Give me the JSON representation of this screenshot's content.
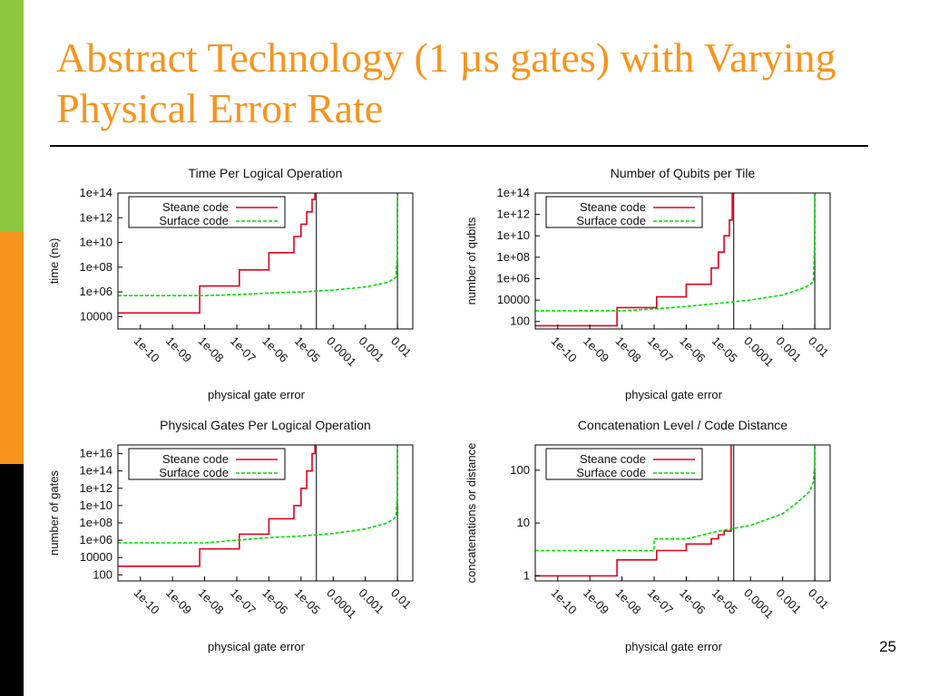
{
  "slide": {
    "title": "Abstract Technology (1 µs gates) with Varying Physical Error Rate",
    "page_number": "25",
    "colors": {
      "title": "#f7941d",
      "bar_green": "#8dc63f",
      "bar_orange": "#f7941d",
      "bar_black": "#000000"
    }
  },
  "chart_data": [
    {
      "type": "line",
      "title": "Time Per Logical Operation",
      "xlabel": "physical gate error",
      "ylabel": "time (ns)",
      "x_scale": "log",
      "y_scale": "log",
      "xlim": [
        2e-11,
        0.03
      ],
      "ylim": [
        1000,
        100000000000000.0
      ],
      "x_ticks": [
        "1e-10",
        "1e-09",
        "1e-08",
        "1e-07",
        "1e-06",
        "1e-05",
        "0.0001",
        "0.001",
        "0.01"
      ],
      "y_ticks": [
        "1e+14",
        "1e+12",
        "1e+10",
        "1e+08",
        "1e+06",
        "10000"
      ],
      "threshold_lines": [
        3e-05,
        0.01
      ],
      "legend": {
        "position": "top-left",
        "entries": [
          "Steane code",
          "Surface code"
        ]
      },
      "series": [
        {
          "name": "Steane code",
          "color": "#e3001b",
          "style": "solid",
          "points": [
            [
              2e-11,
              20000.0
            ],
            [
              7e-09,
              20000.0
            ],
            [
              7e-09,
              3000000.0
            ],
            [
              1.2e-07,
              3000000.0
            ],
            [
              1.2e-07,
              60000000.0
            ],
            [
              1e-06,
              60000000.0
            ],
            [
              1e-06,
              1500000000.0
            ],
            [
              6e-06,
              1500000000.0
            ],
            [
              6e-06,
              30000000000.0
            ],
            [
              1e-05,
              30000000000.0
            ],
            [
              1e-05,
              300000000000.0
            ],
            [
              1.5e-05,
              300000000000.0
            ],
            [
              1.5e-05,
              3000000000000.0
            ],
            [
              2.2e-05,
              3000000000000.0
            ],
            [
              2.2e-05,
              30000000000000.0
            ],
            [
              2.7e-05,
              30000000000000.0
            ],
            [
              2.7e-05,
              100000000000000.0
            ]
          ]
        },
        {
          "name": "Surface code",
          "color": "#00dd00",
          "style": "dashed",
          "points": [
            [
              2e-11,
              500000.0
            ],
            [
              1e-08,
              500000.0
            ],
            [
              1e-07,
              600000.0
            ],
            [
              1e-06,
              800000.0
            ],
            [
              1e-05,
              1000000.0
            ],
            [
              0.0001,
              1400000.0
            ],
            [
              0.001,
              2500000.0
            ],
            [
              0.005,
              6000000.0
            ],
            [
              0.009,
              15000000.0
            ],
            [
              0.0098,
              1000000000.0
            ],
            [
              0.01,
              100000000000000.0
            ]
          ]
        }
      ]
    },
    {
      "type": "line",
      "title": "Number of Qubits per Tile",
      "xlabel": "physical gate error",
      "ylabel": "number of qubits",
      "x_scale": "log",
      "y_scale": "log",
      "xlim": [
        2e-11,
        0.03
      ],
      "ylim": [
        20,
        100000000000000.0
      ],
      "x_ticks": [
        "1e-10",
        "1e-09",
        "1e-08",
        "1e-07",
        "1e-06",
        "1e-05",
        "0.0001",
        "0.001",
        "0.01"
      ],
      "y_ticks": [
        "1e+14",
        "1e+12",
        "1e+10",
        "1e+08",
        "1e+06",
        "10000",
        "100"
      ],
      "threshold_lines": [
        3e-05,
        0.01
      ],
      "legend": {
        "position": "top-left",
        "entries": [
          "Steane code",
          "Surface code"
        ]
      },
      "series": [
        {
          "name": "Steane code",
          "color": "#e3001b",
          "style": "solid",
          "points": [
            [
              2e-11,
              40
            ],
            [
              7e-09,
              40
            ],
            [
              7e-09,
              2000
            ],
            [
              1.2e-07,
              2000
            ],
            [
              1.2e-07,
              20000.0
            ],
            [
              1e-06,
              20000.0
            ],
            [
              1e-06,
              300000.0
            ],
            [
              6e-06,
              300000.0
            ],
            [
              6e-06,
              10000000.0
            ],
            [
              1e-05,
              10000000.0
            ],
            [
              1e-05,
              300000000.0
            ],
            [
              1.5e-05,
              300000000.0
            ],
            [
              1.5e-05,
              10000000000.0
            ],
            [
              2.2e-05,
              10000000000.0
            ],
            [
              2.2e-05,
              300000000000.0
            ],
            [
              2.7e-05,
              300000000000.0
            ],
            [
              2.7e-05,
              100000000000000.0
            ]
          ]
        },
        {
          "name": "Surface code",
          "color": "#00dd00",
          "style": "dashed",
          "points": [
            [
              2e-11,
              1000
            ],
            [
              1e-08,
              1000
            ],
            [
              1e-07,
              1500
            ],
            [
              1e-06,
              2500
            ],
            [
              1e-05,
              5000
            ],
            [
              0.0001,
              10000.0
            ],
            [
              0.001,
              30000.0
            ],
            [
              0.005,
              150000.0
            ],
            [
              0.009,
              500000.0
            ],
            [
              0.0098,
              1000000000.0
            ],
            [
              0.01,
              100000000000000.0
            ]
          ]
        }
      ]
    },
    {
      "type": "line",
      "title": "Physical Gates Per Logical Operation",
      "xlabel": "physical gate error",
      "ylabel": "number of gates",
      "x_scale": "log",
      "y_scale": "log",
      "xlim": [
        2e-11,
        0.03
      ],
      "ylim": [
        20,
        1e+17
      ],
      "x_ticks": [
        "1e-10",
        "1e-09",
        "1e-08",
        "1e-07",
        "1e-06",
        "1e-05",
        "0.0001",
        "0.001",
        "0.01"
      ],
      "y_ticks": [
        "1e+16",
        "1e+14",
        "1e+12",
        "1e+10",
        "1e+08",
        "1e+06",
        "10000",
        "100"
      ],
      "threshold_lines": [
        3e-05,
        0.01
      ],
      "legend": {
        "position": "top-left",
        "entries": [
          "Steane code",
          "Surface code"
        ]
      },
      "series": [
        {
          "name": "Steane code",
          "color": "#e3001b",
          "style": "solid",
          "points": [
            [
              2e-11,
              1000
            ],
            [
              7e-09,
              1000
            ],
            [
              7e-09,
              100000.0
            ],
            [
              1.2e-07,
              100000.0
            ],
            [
              1.2e-07,
              5000000.0
            ],
            [
              1e-06,
              5000000.0
            ],
            [
              1e-06,
              300000000.0
            ],
            [
              6e-06,
              300000000.0
            ],
            [
              6e-06,
              10000000000.0
            ],
            [
              1e-05,
              10000000000.0
            ],
            [
              1e-05,
              1000000000000.0
            ],
            [
              1.5e-05,
              1000000000000.0
            ],
            [
              1.5e-05,
              100000000000000.0
            ],
            [
              2.2e-05,
              100000000000000.0
            ],
            [
              2.2e-05,
              1e+16
            ],
            [
              2.7e-05,
              1e+16
            ],
            [
              2.7e-05,
              1e+17
            ]
          ]
        },
        {
          "name": "Surface code",
          "color": "#00dd00",
          "style": "dashed",
          "points": [
            [
              2e-11,
              500000.0
            ],
            [
              1e-08,
              500000.0
            ],
            [
              1e-07,
              1000000.0
            ],
            [
              1e-06,
              2000000.0
            ],
            [
              1e-05,
              3000000.0
            ],
            [
              0.0001,
              6000000.0
            ],
            [
              0.001,
              20000000.0
            ],
            [
              0.005,
              100000000.0
            ],
            [
              0.009,
              500000000.0
            ],
            [
              0.0098,
              100000000000.0
            ],
            [
              0.01,
              1e+17
            ]
          ]
        }
      ]
    },
    {
      "type": "line",
      "title": "Concatenation Level / Code Distance",
      "xlabel": "physical gate error",
      "ylabel": "concatenations or distance",
      "x_scale": "log",
      "y_scale": "log",
      "xlim": [
        2e-11,
        0.03
      ],
      "ylim": [
        0.8,
        300
      ],
      "x_ticks": [
        "1e-10",
        "1e-09",
        "1e-08",
        "1e-07",
        "1e-06",
        "1e-05",
        "0.0001",
        "0.001",
        "0.01"
      ],
      "y_ticks": [
        "100",
        "10",
        "1"
      ],
      "threshold_lines": [
        3e-05,
        0.01
      ],
      "legend": {
        "position": "top-left",
        "entries": [
          "Steane code",
          "Surface code"
        ]
      },
      "series": [
        {
          "name": "Steane code",
          "color": "#e3001b",
          "style": "solid",
          "points": [
            [
              2e-11,
              1
            ],
            [
              7e-09,
              1
            ],
            [
              7e-09,
              2
            ],
            [
              1.2e-07,
              2
            ],
            [
              1.2e-07,
              3
            ],
            [
              1e-06,
              3
            ],
            [
              1e-06,
              4
            ],
            [
              6e-06,
              4
            ],
            [
              6e-06,
              5
            ],
            [
              1e-05,
              5
            ],
            [
              1e-05,
              6
            ],
            [
              1.5e-05,
              6
            ],
            [
              1.5e-05,
              7
            ],
            [
              2.5e-05,
              7
            ],
            [
              2.5e-05,
              300
            ]
          ]
        },
        {
          "name": "Surface code",
          "color": "#00dd00",
          "style": "dashed",
          "points": [
            [
              2e-11,
              3
            ],
            [
              1e-07,
              3
            ],
            [
              1e-07,
              5
            ],
            [
              1e-06,
              5
            ],
            [
              1e-05,
              7
            ],
            [
              0.0001,
              9
            ],
            [
              0.001,
              15
            ],
            [
              0.003,
              25
            ],
            [
              0.007,
              40
            ],
            [
              0.009,
              60
            ],
            [
              0.0098,
              120
            ],
            [
              0.01,
              300
            ]
          ]
        }
      ]
    }
  ]
}
